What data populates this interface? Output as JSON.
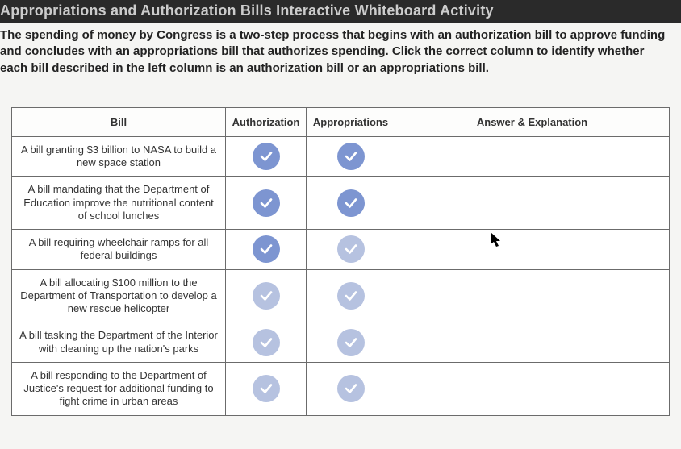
{
  "header": {
    "title": "Appropriations and Authorization Bills Interactive Whiteboard Activity"
  },
  "instructions": {
    "text": "The spending of money by Congress is a two-step process that begins with an authorization bill to approve funding and concludes with an appropriations bill that authorizes spending. Click the correct column to identify whether each bill described in the left column is an authorization bill or an appropriations bill."
  },
  "columns": {
    "bill": "Bill",
    "authorization": "Authorization",
    "appropriations": "Appropriations",
    "answer": "Answer & Explanation"
  },
  "check_colors": {
    "strong": "#7d95d1",
    "faded": "#b6c2e0",
    "tick": "#ffffff"
  },
  "rows": [
    {
      "bill": "A bill granting $3 billion to NASA to build a new space station",
      "auth_style": "strong",
      "approp_style": "strong",
      "answer": ""
    },
    {
      "bill": "A bill mandating that the Department of Education improve the nutritional content of school lunches",
      "auth_style": "strong",
      "approp_style": "strong",
      "answer": ""
    },
    {
      "bill": "A bill requiring wheelchair ramps for all federal buildings",
      "auth_style": "strong",
      "approp_style": "faded",
      "answer": ""
    },
    {
      "bill": "A bill allocating $100 million to the Department of Transportation to develop a new rescue helicopter",
      "auth_style": "faded",
      "approp_style": "faded",
      "answer": ""
    },
    {
      "bill": "A bill tasking the Department of the Interior with cleaning up the nation's parks",
      "auth_style": "faded",
      "approp_style": "faded",
      "answer": ""
    },
    {
      "bill": "A bill responding to the Department of Justice's request for additional funding to fight crime in urban areas",
      "auth_style": "faded",
      "approp_style": "faded",
      "answer": ""
    }
  ]
}
